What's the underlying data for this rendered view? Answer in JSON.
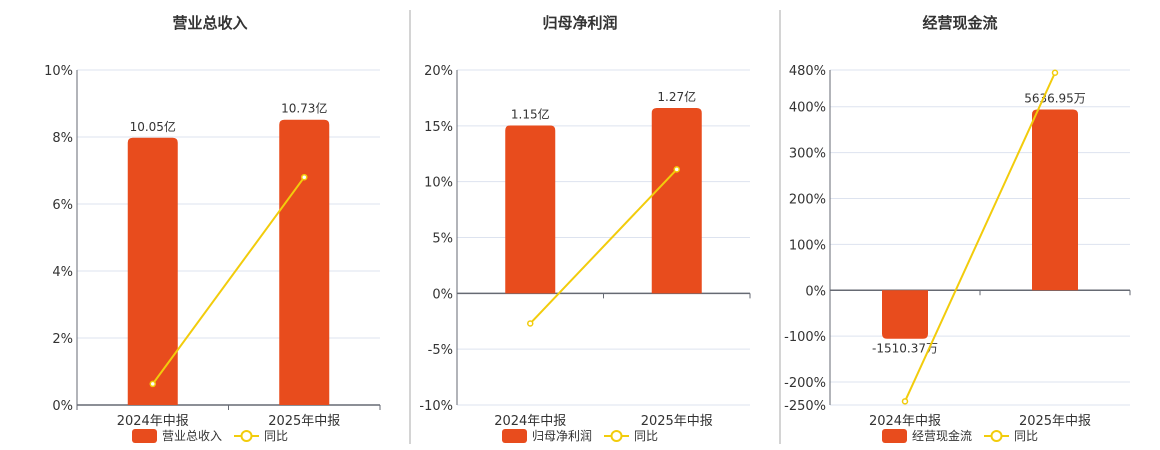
{
  "colors": {
    "bar": "#e84c1d",
    "line": "#f2cc0c",
    "grid": "#dde3ef",
    "axis": "#666a73",
    "text": "#333333",
    "divider": "#aaaaaa"
  },
  "chart_data": [
    {
      "type": "bar+line",
      "title": "营业总收入",
      "categories": [
        "2024年中报",
        "2025年中报"
      ],
      "bar_series": {
        "name": "营业总收入",
        "values": [
          10.05,
          10.73
        ],
        "labels": [
          "10.05亿",
          "10.73亿"
        ],
        "unit": "亿"
      },
      "line_series": {
        "name": "同比",
        "values": [
          0.63,
          6.8
        ],
        "unit": "%"
      },
      "yticks": [
        "0%",
        "2%",
        "4%",
        "6%",
        "8%",
        "10%"
      ],
      "ylim": [
        0,
        10
      ],
      "grid": true,
      "legend": "bottom"
    },
    {
      "type": "bar+line",
      "title": "归母净利润",
      "categories": [
        "2024年中报",
        "2025年中报"
      ],
      "bar_series": {
        "name": "归母净利润",
        "values": [
          1.15,
          1.27
        ],
        "labels": [
          "1.15亿",
          "1.27亿"
        ],
        "unit": "亿"
      },
      "line_series": {
        "name": "同比",
        "values": [
          -2.7,
          11.1
        ],
        "unit": "%"
      },
      "yticks": [
        "-10%",
        "-5%",
        "0%",
        "5%",
        "10%",
        "15%",
        "20%"
      ],
      "ylim": [
        -10,
        20
      ],
      "grid": true,
      "legend": "bottom"
    },
    {
      "type": "bar+line",
      "title": "经营现金流",
      "categories": [
        "2024年中报",
        "2025年中报"
      ],
      "bar_series": {
        "name": "经营现金流",
        "values": [
          -1510.37,
          5636.95
        ],
        "labels": [
          "-1510.37万",
          "5636.95万"
        ],
        "unit": "万"
      },
      "line_series": {
        "name": "同比",
        "values": [
          -242,
          474
        ],
        "unit": "%"
      },
      "yticks": [
        "-250%",
        "-200%",
        "-100%",
        "0%",
        "100%",
        "200%",
        "300%",
        "400%",
        "480%"
      ],
      "ylim": [
        -250,
        480
      ],
      "grid": true,
      "legend": "bottom"
    }
  ]
}
